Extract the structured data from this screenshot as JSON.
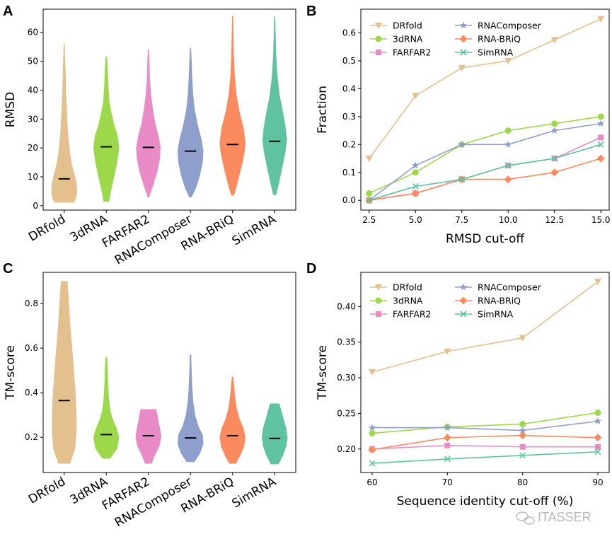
{
  "panels": {
    "a": "A",
    "b": "B",
    "c": "C",
    "d": "D"
  },
  "watermark": "ITASSER",
  "colors": {
    "DRfold": "#e4c08f",
    "3dRNA": "#9dd84a",
    "FARFAR2": "#e98bc6",
    "RNAComposer": "#8e9fcc",
    "RNA-BRiQ": "#fb8b5e",
    "SimRNA": "#5fc2a0"
  },
  "chart_data": [
    {
      "type": "violin",
      "panel": "A",
      "categories": [
        "DRfold",
        "3dRNA",
        "FARFAR2",
        "RNAComposer",
        "RNA-BRiQ",
        "SimRNA"
      ],
      "ylabel": "RMSD",
      "ylim": [
        -1.5,
        68
      ],
      "yticks": [
        0,
        10,
        20,
        30,
        40,
        50,
        60
      ],
      "violins": [
        {
          "name": "DRfold",
          "min": 1.2,
          "max": 56,
          "median": 9.3,
          "profile": [
            [
              1.2,
              0.78
            ],
            [
              4,
              1.0
            ],
            [
              7,
              0.98
            ],
            [
              10,
              0.85
            ],
            [
              14,
              0.6
            ],
            [
              18,
              0.45
            ],
            [
              24,
              0.3
            ],
            [
              30,
              0.22
            ],
            [
              38,
              0.14
            ],
            [
              46,
              0.09
            ],
            [
              52,
              0.05
            ],
            [
              56,
              0.02
            ]
          ]
        },
        {
          "name": "3dRNA",
          "min": 1.5,
          "max": 51.5,
          "median": 20.4,
          "profile": [
            [
              1.5,
              0.2
            ],
            [
              5,
              0.35
            ],
            [
              10,
              0.6
            ],
            [
              15,
              0.85
            ],
            [
              20,
              1.0
            ],
            [
              24,
              0.9
            ],
            [
              28,
              0.6
            ],
            [
              32,
              0.4
            ],
            [
              36,
              0.22
            ],
            [
              42,
              0.14
            ],
            [
              48,
              0.08
            ],
            [
              51.5,
              0.03
            ]
          ]
        },
        {
          "name": "FARFAR2",
          "min": 3,
          "max": 54,
          "median": 20.2,
          "profile": [
            [
              3,
              0.05
            ],
            [
              7,
              0.35
            ],
            [
              12,
              0.7
            ],
            [
              16,
              0.88
            ],
            [
              20,
              0.95
            ],
            [
              24,
              0.8
            ],
            [
              28,
              0.55
            ],
            [
              33,
              0.35
            ],
            [
              38,
              0.2
            ],
            [
              44,
              0.1
            ],
            [
              50,
              0.06
            ],
            [
              54,
              0.02
            ]
          ]
        },
        {
          "name": "RNAComposer",
          "min": 3,
          "max": 54.5,
          "median": 18.9,
          "profile": [
            [
              3,
              0.08
            ],
            [
              6,
              0.4
            ],
            [
              10,
              0.7
            ],
            [
              15,
              0.95
            ],
            [
              19,
              1.0
            ],
            [
              23,
              0.85
            ],
            [
              28,
              0.55
            ],
            [
              33,
              0.32
            ],
            [
              38,
              0.2
            ],
            [
              44,
              0.12
            ],
            [
              50,
              0.07
            ],
            [
              54.5,
              0.02
            ]
          ]
        },
        {
          "name": "RNA-BRiQ",
          "min": 3.7,
          "max": 65.5,
          "median": 21.2,
          "profile": [
            [
              3.7,
              0.1
            ],
            [
              8,
              0.38
            ],
            [
              14,
              0.72
            ],
            [
              19,
              0.95
            ],
            [
              22,
              1.0
            ],
            [
              27,
              0.85
            ],
            [
              32,
              0.55
            ],
            [
              38,
              0.3
            ],
            [
              45,
              0.15
            ],
            [
              52,
              0.08
            ],
            [
              60,
              0.04
            ],
            [
              65.5,
              0.02
            ]
          ]
        },
        {
          "name": "SimRNA",
          "min": 3.8,
          "max": 65.5,
          "median": 22.3,
          "profile": [
            [
              3.8,
              0.1
            ],
            [
              8,
              0.33
            ],
            [
              14,
              0.62
            ],
            [
              19,
              0.85
            ],
            [
              23,
              0.95
            ],
            [
              27,
              0.85
            ],
            [
              32,
              0.65
            ],
            [
              38,
              0.38
            ],
            [
              45,
              0.2
            ],
            [
              52,
              0.1
            ],
            [
              60,
              0.05
            ],
            [
              65.5,
              0.02
            ]
          ]
        }
      ]
    },
    {
      "type": "line",
      "panel": "B",
      "xlabel": "RMSD cut-off",
      "ylabel": "Fraction",
      "x": [
        2.5,
        5.0,
        7.5,
        10.0,
        12.5,
        15.0
      ],
      "xticks": [
        "2.5",
        "5.0",
        "7.5",
        "10.0",
        "12.5",
        "15.0"
      ],
      "xlim": [
        2.05,
        15.45
      ],
      "ylim": [
        -0.035,
        0.685
      ],
      "yticks": [
        "0.0",
        "0.1",
        "0.2",
        "0.3",
        "0.4",
        "0.5",
        "0.6"
      ],
      "legend": "upper-left",
      "series": [
        {
          "name": "DRfold",
          "marker": "triangle-down",
          "values": [
            0.15,
            0.375,
            0.475,
            0.5,
            0.575,
            0.65
          ]
        },
        {
          "name": "3dRNA",
          "marker": "circle",
          "values": [
            0.025,
            0.1,
            0.2,
            0.25,
            0.275,
            0.3
          ]
        },
        {
          "name": "FARFAR2",
          "marker": "square",
          "values": [
            0.0,
            0.025,
            0.075,
            0.125,
            0.15,
            0.225
          ]
        },
        {
          "name": "RNAComposer",
          "marker": "star",
          "values": [
            0.0,
            0.125,
            0.2,
            0.2,
            0.25,
            0.275
          ]
        },
        {
          "name": "RNA-BRiQ",
          "marker": "diamond",
          "values": [
            0.0,
            0.025,
            0.075,
            0.075,
            0.1,
            0.15
          ]
        },
        {
          "name": "SimRNA",
          "marker": "x",
          "values": [
            0.0,
            0.05,
            0.075,
            0.125,
            0.15,
            0.2
          ]
        }
      ]
    },
    {
      "type": "violin",
      "panel": "C",
      "categories": [
        "DRfold",
        "3dRNA",
        "FARFAR2",
        "RNAComposer",
        "RNA-BRiQ",
        "SimRNA"
      ],
      "ylabel": "TM-score",
      "ylim": [
        0.042,
        0.94
      ],
      "yticks": [
        0.2,
        0.4,
        0.6,
        0.8
      ],
      "violins": [
        {
          "name": "DRfold",
          "min": 0.083,
          "max": 0.9,
          "median": 0.365,
          "profile": [
            [
              0.083,
              0.45
            ],
            [
              0.15,
              0.85
            ],
            [
              0.22,
              0.95
            ],
            [
              0.3,
              0.95
            ],
            [
              0.38,
              0.9
            ],
            [
              0.46,
              0.8
            ],
            [
              0.54,
              0.7
            ],
            [
              0.62,
              0.58
            ],
            [
              0.7,
              0.46
            ],
            [
              0.78,
              0.38
            ],
            [
              0.85,
              0.3
            ],
            [
              0.9,
              0.24
            ]
          ]
        },
        {
          "name": "3dRNA",
          "min": 0.105,
          "max": 0.56,
          "median": 0.212,
          "profile": [
            [
              0.105,
              0.3
            ],
            [
              0.15,
              0.85
            ],
            [
              0.2,
              1.0
            ],
            [
              0.24,
              0.8
            ],
            [
              0.28,
              0.5
            ],
            [
              0.32,
              0.3
            ],
            [
              0.38,
              0.18
            ],
            [
              0.45,
              0.12
            ],
            [
              0.52,
              0.08
            ],
            [
              0.56,
              0.04
            ]
          ]
        },
        {
          "name": "FARFAR2",
          "min": 0.083,
          "max": 0.325,
          "median": 0.207,
          "profile": [
            [
              0.083,
              0.25
            ],
            [
              0.12,
              0.5
            ],
            [
              0.16,
              0.85
            ],
            [
              0.2,
              1.0
            ],
            [
              0.24,
              0.9
            ],
            [
              0.28,
              0.75
            ],
            [
              0.3,
              0.7
            ],
            [
              0.325,
              0.6
            ]
          ]
        },
        {
          "name": "RNAComposer",
          "min": 0.09,
          "max": 0.57,
          "median": 0.197,
          "profile": [
            [
              0.09,
              0.3
            ],
            [
              0.13,
              0.75
            ],
            [
              0.17,
              1.0
            ],
            [
              0.21,
              0.95
            ],
            [
              0.25,
              0.6
            ],
            [
              0.3,
              0.35
            ],
            [
              0.36,
              0.2
            ],
            [
              0.42,
              0.12
            ],
            [
              0.5,
              0.07
            ],
            [
              0.57,
              0.03
            ]
          ]
        },
        {
          "name": "RNA-BRiQ",
          "min": 0.083,
          "max": 0.47,
          "median": 0.207,
          "profile": [
            [
              0.083,
              0.25
            ],
            [
              0.12,
              0.6
            ],
            [
              0.16,
              0.9
            ],
            [
              0.2,
              1.0
            ],
            [
              0.24,
              0.85
            ],
            [
              0.28,
              0.55
            ],
            [
              0.33,
              0.3
            ],
            [
              0.38,
              0.18
            ],
            [
              0.43,
              0.1
            ],
            [
              0.47,
              0.04
            ]
          ]
        },
        {
          "name": "SimRNA",
          "min": 0.08,
          "max": 0.35,
          "median": 0.195,
          "profile": [
            [
              0.08,
              0.3
            ],
            [
              0.12,
              0.65
            ],
            [
              0.16,
              0.9
            ],
            [
              0.2,
              1.0
            ],
            [
              0.24,
              0.9
            ],
            [
              0.28,
              0.7
            ],
            [
              0.32,
              0.5
            ],
            [
              0.35,
              0.35
            ]
          ]
        }
      ]
    },
    {
      "type": "line",
      "panel": "D",
      "xlabel": "Sequence identity cut-off (%)",
      "ylabel": "TM-score",
      "x": [
        60,
        70,
        80,
        90
      ],
      "xticks": [
        "60",
        "70",
        "80",
        "90"
      ],
      "xlim": [
        58.5,
        91.5
      ],
      "ylim": [
        0.167,
        0.448
      ],
      "yticks": [
        "0.20",
        "0.25",
        "0.30",
        "0.35",
        "0.40"
      ],
      "legend": "upper-left",
      "series": [
        {
          "name": "DRfold",
          "marker": "triangle-down",
          "values": [
            0.308,
            0.337,
            0.356,
            0.435
          ]
        },
        {
          "name": "3dRNA",
          "marker": "circle",
          "values": [
            0.222,
            0.231,
            0.235,
            0.251
          ]
        },
        {
          "name": "FARFAR2",
          "marker": "square",
          "values": [
            0.2,
            0.205,
            0.203,
            0.203
          ]
        },
        {
          "name": "RNAComposer",
          "marker": "star",
          "values": [
            0.23,
            0.23,
            0.226,
            0.239
          ]
        },
        {
          "name": "RNA-BRiQ",
          "marker": "diamond",
          "values": [
            0.199,
            0.216,
            0.219,
            0.216
          ]
        },
        {
          "name": "SimRNA",
          "marker": "x",
          "values": [
            0.18,
            0.186,
            0.191,
            0.196
          ]
        }
      ]
    }
  ]
}
